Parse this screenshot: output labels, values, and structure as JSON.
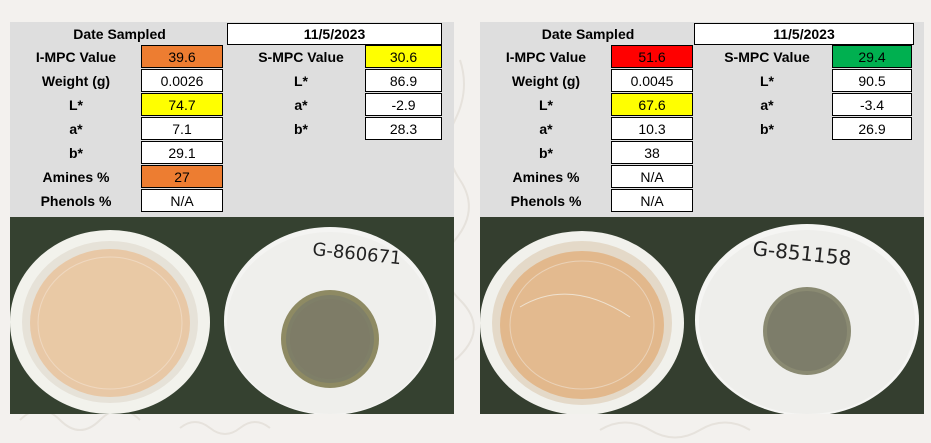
{
  "colors": {
    "orange": "#ed7d31",
    "yellow": "#ffff00",
    "red": "#ff0000",
    "green": "#00b050",
    "panel_bg": "#dedede"
  },
  "samples": [
    {
      "date_label": "Date Sampled",
      "date_value": "11/5/2023",
      "i_mpc_label": "I-MPC Value",
      "i_mpc_value": "39.6",
      "i_mpc_color": "orange",
      "weight_label": "Weight (g)",
      "weight_value": "0.0026",
      "l_label": "L*",
      "l_value": "74.7",
      "l_color": "yellow",
      "a_label": "a*",
      "a_value": "7.1",
      "b_label": "b*",
      "b_value": "29.1",
      "amines_label": "Amines %",
      "amines_value": "27",
      "amines_color": "orange",
      "phenols_label": "Phenols %",
      "phenols_value": "N/A",
      "s_mpc_label": "S-MPC Value",
      "s_mpc_value": "30.6",
      "s_mpc_color": "yellow",
      "s_l_label": "L*",
      "s_l_value": "86.9",
      "s_a_label": "a*",
      "s_a_value": "-2.9",
      "s_b_label": "b*",
      "s_b_value": "28.3",
      "patch_label": "G-860671"
    },
    {
      "date_label": "Date Sampled",
      "date_value": "11/5/2023",
      "i_mpc_label": "I-MPC Value",
      "i_mpc_value": "51.6",
      "i_mpc_color": "red",
      "weight_label": "Weight (g)",
      "weight_value": "0.0045",
      "l_label": "L*",
      "l_value": "67.6",
      "l_color": "yellow",
      "a_label": "a*",
      "a_value": "10.3",
      "b_label": "b*",
      "b_value": "38",
      "amines_label": "Amines %",
      "amines_value": "N/A",
      "amines_color": "",
      "phenols_label": "Phenols %",
      "phenols_value": "N/A",
      "s_mpc_label": "S-MPC Value",
      "s_mpc_value": "29.4",
      "s_mpc_color": "green",
      "s_l_label": "L*",
      "s_l_value": "90.5",
      "s_a_label": "a*",
      "s_a_value": "-3.4",
      "s_b_label": "b*",
      "s_b_value": "26.9",
      "patch_label": "G-851158"
    }
  ]
}
